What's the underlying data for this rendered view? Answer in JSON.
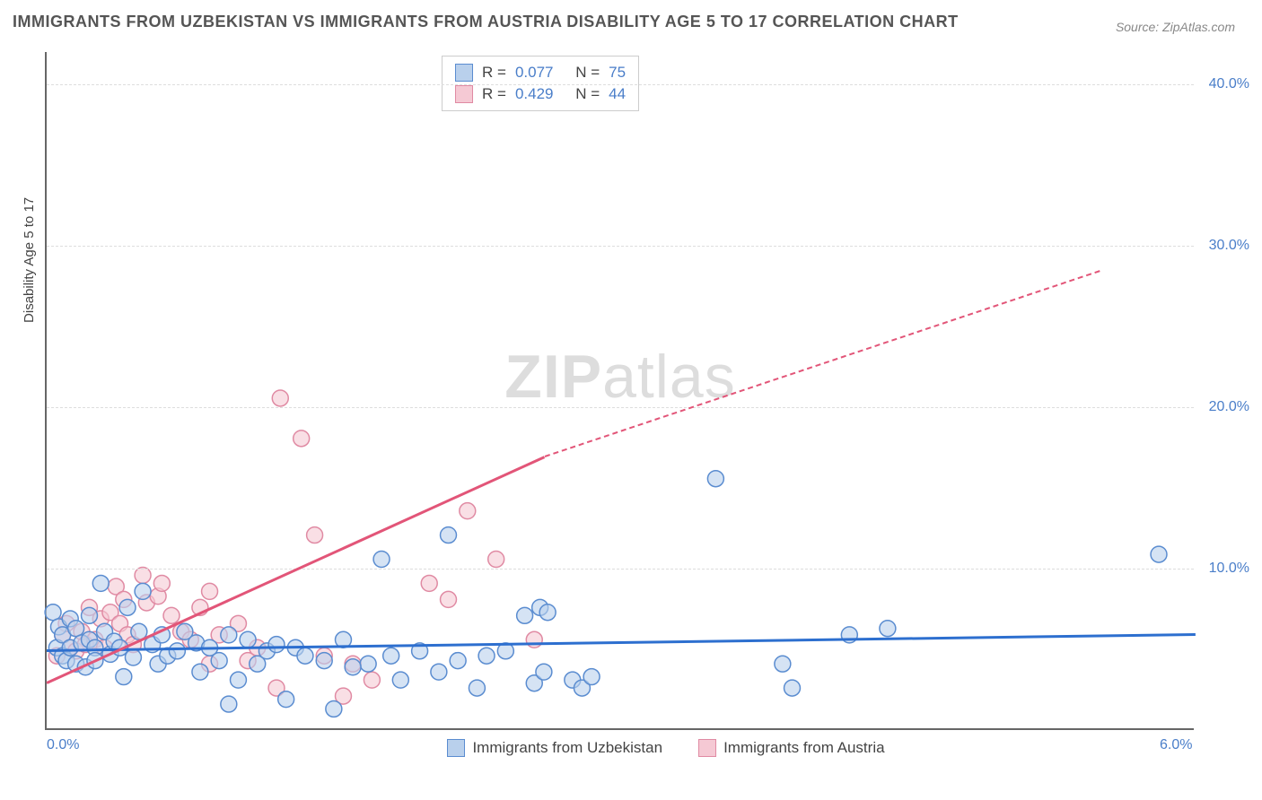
{
  "title": "IMMIGRANTS FROM UZBEKISTAN VS IMMIGRANTS FROM AUSTRIA DISABILITY AGE 5 TO 17 CORRELATION CHART",
  "source": "Source: ZipAtlas.com",
  "y_axis_label": "Disability Age 5 to 17",
  "watermark_bold": "ZIP",
  "watermark_rest": "atlas",
  "chart": {
    "type": "scatter",
    "background_color": "#ffffff",
    "grid_color": "#dddddd",
    "axis_color": "#666666",
    "xlim": [
      0.0,
      6.0
    ],
    "ylim": [
      0.0,
      42.0
    ],
    "x_ticks": [
      {
        "v": 0.0,
        "label": "0.0%"
      },
      {
        "v": 6.0,
        "label": "6.0%"
      }
    ],
    "y_ticks": [
      {
        "v": 10.0,
        "label": "10.0%"
      },
      {
        "v": 20.0,
        "label": "20.0%"
      },
      {
        "v": 30.0,
        "label": "30.0%"
      },
      {
        "v": 40.0,
        "label": "40.0%"
      }
    ],
    "y_tick_label_color": "#4a7ec9",
    "x_tick_label_color": "#4a7ec9",
    "marker_radius": 9,
    "marker_stroke_width": 1.5,
    "series": [
      {
        "name": "Immigrants from Uzbekistan",
        "color_fill": "#b9d0ec",
        "color_stroke": "#5a8cd0",
        "fill_opacity": 0.6,
        "R": "0.077",
        "N": "75",
        "trend": {
          "x1": 0.0,
          "y1": 5.0,
          "x2": 6.0,
          "y2": 6.0,
          "width": 2.5,
          "color": "#2d6fcf",
          "dash_after_x": 6.0
        },
        "points": [
          [
            0.03,
            7.2
          ],
          [
            0.05,
            5.0
          ],
          [
            0.06,
            6.3
          ],
          [
            0.08,
            4.5
          ],
          [
            0.08,
            5.8
          ],
          [
            0.1,
            4.2
          ],
          [
            0.12,
            6.8
          ],
          [
            0.12,
            5.0
          ],
          [
            0.15,
            4.0
          ],
          [
            0.15,
            6.2
          ],
          [
            0.18,
            5.3
          ],
          [
            0.2,
            3.8
          ],
          [
            0.22,
            7.0
          ],
          [
            0.22,
            5.5
          ],
          [
            0.25,
            5.0
          ],
          [
            0.25,
            4.2
          ],
          [
            0.28,
            9.0
          ],
          [
            0.3,
            6.0
          ],
          [
            0.33,
            4.6
          ],
          [
            0.35,
            5.4
          ],
          [
            0.38,
            5.0
          ],
          [
            0.4,
            3.2
          ],
          [
            0.42,
            7.5
          ],
          [
            0.45,
            4.4
          ],
          [
            0.48,
            6.0
          ],
          [
            0.5,
            8.5
          ],
          [
            0.55,
            5.2
          ],
          [
            0.58,
            4.0
          ],
          [
            0.6,
            5.8
          ],
          [
            0.63,
            4.5
          ],
          [
            0.68,
            4.8
          ],
          [
            0.72,
            6.0
          ],
          [
            0.78,
            5.3
          ],
          [
            0.8,
            3.5
          ],
          [
            0.85,
            5.0
          ],
          [
            0.9,
            4.2
          ],
          [
            0.95,
            5.8
          ],
          [
            1.0,
            3.0
          ],
          [
            1.05,
            5.5
          ],
          [
            1.1,
            4.0
          ],
          [
            1.15,
            4.8
          ],
          [
            1.2,
            5.2
          ],
          [
            1.25,
            1.8
          ],
          [
            1.3,
            5.0
          ],
          [
            1.35,
            4.5
          ],
          [
            1.45,
            4.2
          ],
          [
            1.5,
            1.2
          ],
          [
            1.55,
            5.5
          ],
          [
            1.68,
            4.0
          ],
          [
            1.75,
            10.5
          ],
          [
            1.8,
            4.5
          ],
          [
            1.85,
            3.0
          ],
          [
            1.95,
            4.8
          ],
          [
            2.05,
            3.5
          ],
          [
            2.1,
            12.0
          ],
          [
            2.15,
            4.2
          ],
          [
            2.25,
            2.5
          ],
          [
            2.3,
            4.5
          ],
          [
            2.5,
            7.0
          ],
          [
            2.55,
            2.8
          ],
          [
            2.58,
            7.5
          ],
          [
            2.6,
            3.5
          ],
          [
            2.62,
            7.2
          ],
          [
            2.75,
            3.0
          ],
          [
            2.8,
            2.5
          ],
          [
            2.85,
            3.2
          ],
          [
            3.5,
            15.5
          ],
          [
            3.85,
            4.0
          ],
          [
            3.9,
            2.5
          ],
          [
            4.2,
            5.8
          ],
          [
            4.4,
            6.2
          ],
          [
            5.82,
            10.8
          ],
          [
            2.4,
            4.8
          ],
          [
            1.6,
            3.8
          ],
          [
            0.95,
            1.5
          ]
        ]
      },
      {
        "name": "Immigrants from Austria",
        "color_fill": "#f5c9d4",
        "color_stroke": "#e08aa3",
        "fill_opacity": 0.6,
        "R": "0.429",
        "N": "44",
        "trend": {
          "x1": 0.0,
          "y1": 3.0,
          "x2": 2.6,
          "y2": 17.0,
          "width": 2.5,
          "color": "#e25578",
          "dash_after_x": 2.6,
          "dash_to_x": 5.5,
          "dash_to_y": 28.5
        },
        "points": [
          [
            0.05,
            4.5
          ],
          [
            0.08,
            5.8
          ],
          [
            0.1,
            6.5
          ],
          [
            0.12,
            5.0
          ],
          [
            0.15,
            4.8
          ],
          [
            0.18,
            6.0
          ],
          [
            0.2,
            5.2
          ],
          [
            0.22,
            7.5
          ],
          [
            0.25,
            5.5
          ],
          [
            0.28,
            6.8
          ],
          [
            0.3,
            5.0
          ],
          [
            0.33,
            7.2
          ],
          [
            0.36,
            8.8
          ],
          [
            0.38,
            6.5
          ],
          [
            0.4,
            8.0
          ],
          [
            0.42,
            5.8
          ],
          [
            0.45,
            5.2
          ],
          [
            0.5,
            9.5
          ],
          [
            0.52,
            7.8
          ],
          [
            0.58,
            8.2
          ],
          [
            0.65,
            7.0
          ],
          [
            0.7,
            6.0
          ],
          [
            0.75,
            5.5
          ],
          [
            0.8,
            7.5
          ],
          [
            0.85,
            4.0
          ],
          [
            0.85,
            8.5
          ],
          [
            0.9,
            5.8
          ],
          [
            1.0,
            6.5
          ],
          [
            1.05,
            4.2
          ],
          [
            1.1,
            5.0
          ],
          [
            1.2,
            2.5
          ],
          [
            1.22,
            20.5
          ],
          [
            1.33,
            18.0
          ],
          [
            1.4,
            12.0
          ],
          [
            1.45,
            4.5
          ],
          [
            1.55,
            2.0
          ],
          [
            1.6,
            4.0
          ],
          [
            1.7,
            3.0
          ],
          [
            2.0,
            9.0
          ],
          [
            2.1,
            8.0
          ],
          [
            2.2,
            13.5
          ],
          [
            2.35,
            10.5
          ],
          [
            2.55,
            5.5
          ],
          [
            0.6,
            9.0
          ]
        ]
      }
    ]
  },
  "legend_top": {
    "r_label": "R =",
    "n_label": "N =",
    "value_color": "#4a7ec9"
  },
  "legend_bottom": {
    "items": [
      {
        "label": "Immigrants from Uzbekistan"
      },
      {
        "label": "Immigrants from Austria"
      }
    ]
  }
}
